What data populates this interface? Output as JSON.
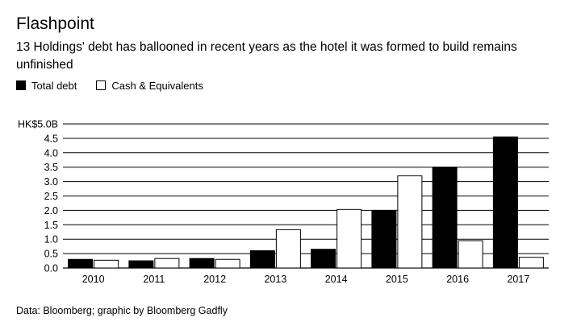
{
  "header": {
    "title": "Flashpoint",
    "subtitle": "13 Holdings' debt has ballooned in recent years as the hotel it was formed to build remains unfinished"
  },
  "footer": {
    "source": "Data: Bloomberg; graphic by Bloomberg Gadfly"
  },
  "colors": {
    "total_debt": "#000000",
    "cash": "#ffffff",
    "grid": "#000000"
  },
  "chart_data": {
    "type": "bar",
    "title": "Flashpoint",
    "subtitle": "13 Holdings' debt has ballooned in recent years as the hotel it was formed to build remains unfinished",
    "categories": [
      "2010",
      "2011",
      "2012",
      "2013",
      "2014",
      "2015",
      "2016",
      "2017"
    ],
    "series": [
      {
        "name": "Total debt",
        "values": [
          0.3,
          0.25,
          0.33,
          0.6,
          0.65,
          2.0,
          3.5,
          4.55
        ]
      },
      {
        "name": "Cash & Equivalents",
        "values": [
          0.27,
          0.33,
          0.3,
          1.33,
          2.03,
          3.2,
          0.95,
          0.37
        ]
      }
    ],
    "ylim": [
      0,
      5.0
    ],
    "yticks": [
      0,
      0.5,
      1.0,
      1.5,
      2.0,
      2.5,
      3.0,
      3.5,
      4.0,
      4.5,
      5.0
    ],
    "ytick_labels": [
      "0.0",
      "0.5",
      "1.0",
      "1.5",
      "2.0",
      "2.5",
      "3.0",
      "3.5",
      "4.0",
      "4.5",
      "HK$5.0B"
    ],
    "legend": "top-left",
    "grid": true
  }
}
